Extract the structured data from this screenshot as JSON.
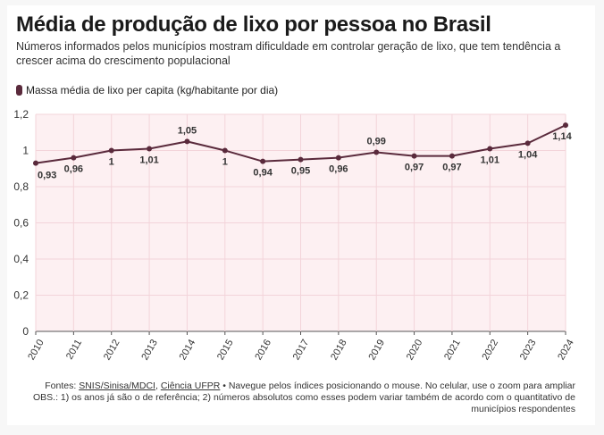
{
  "header": {
    "title": "Média de produção de lixo por pessoa no Brasil",
    "subtitle": "Números informados pelos municípios mostram dificuldade em controlar geração de lixo, que tem tendência a crescer acima do crescimento populacional"
  },
  "legend": {
    "label": "Massa média de lixo per capita (kg/habitante por dia)",
    "color": "#5a2a3c"
  },
  "footer": {
    "sources_prefix": "Fontes: ",
    "source_1": "SNIS/Sinisa/MDCI",
    "separator": ", ",
    "source_2": "Ciência UFPR",
    "note": " • Navegue pelos índices posicionando o mouse. No celular, use o zoom para ampliar",
    "obs": "OBS.: 1) os anos já são o de referência; 2) números absolutos como esses podem variar também de acordo com o quantitativo de municípios respondentes"
  },
  "colors": {
    "line": "#5a2a3c",
    "plot_background": "#fdf0f2",
    "grid": "#f3d4da"
  },
  "chart_data": {
    "type": "line",
    "categories": [
      "2010",
      "2011",
      "2012",
      "2013",
      "2014",
      "2015",
      "2016",
      "2017",
      "2018",
      "2019",
      "2020",
      "2021",
      "2022",
      "2023",
      "2024"
    ],
    "series": [
      {
        "name": "Massa média de lixo per capita (kg/habitante por dia)",
        "values": [
          0.93,
          0.96,
          1.0,
          1.01,
          1.05,
          1.0,
          0.94,
          0.95,
          0.96,
          0.99,
          0.97,
          0.97,
          1.01,
          1.04,
          1.14
        ],
        "data_labels": [
          "0,93",
          "0,96",
          "1",
          "1,01",
          "1,05",
          "1",
          "0,94",
          "0,95",
          "0,96",
          "0,99",
          "0,97",
          "0,97",
          "1,01",
          "1,04",
          "1,14"
        ]
      }
    ],
    "y_ticks": [
      0,
      0.2,
      0.4,
      0.6,
      0.8,
      1,
      1.2
    ],
    "y_tick_labels": [
      "0",
      "0,2",
      "0,4",
      "0,6",
      "0,8",
      "1",
      "1,2"
    ],
    "ylim": [
      0,
      1.2
    ],
    "grid": true,
    "legend_position": "top-left"
  }
}
